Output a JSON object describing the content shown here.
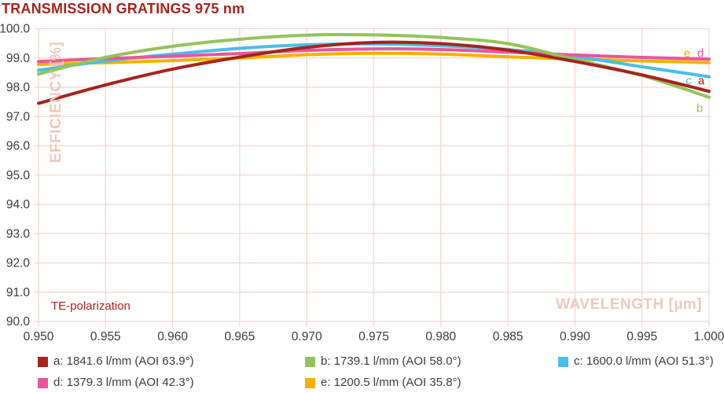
{
  "colors": {
    "title": "#A6231C",
    "axis_title": "#EFC8BC",
    "grid": "#F3D7CD",
    "tick_text": "#3B3B3A",
    "legend_text": "#3B3B3A",
    "annotation": "#A6231C",
    "background": "#FFFFFF"
  },
  "chart_data": {
    "type": "line",
    "title": "TRANSMISSION GRATINGS 975 nm",
    "xlabel": "WAVELENGTH [µm]",
    "ylabel": "EFFICIENCY [%]",
    "annotation": "TE-polarization",
    "grid": true,
    "legend_position": "bottom",
    "xlim": [
      0.95,
      1.0
    ],
    "ylim": [
      90.0,
      100.0
    ],
    "x_ticks": [
      "0.950",
      "0.955",
      "0.960",
      "0.965",
      "0.970",
      "0.975",
      "0.980",
      "0.985",
      "0.990",
      "0.995",
      "1.000"
    ],
    "y_ticks": [
      "100.0",
      "99.0",
      "98.0",
      "97.0",
      "96.0",
      "95.0",
      "94.0",
      "93.0",
      "92.0",
      "91.0",
      "90.0"
    ],
    "x": [
      0.95,
      0.955,
      0.96,
      0.965,
      0.97,
      0.975,
      0.98,
      0.985,
      0.99,
      0.995,
      1.0
    ],
    "series": [
      {
        "id": "a",
        "label": "a: 1841.6 l/mm (AOI 63.9°)",
        "color": "#A6231C",
        "values": [
          97.45,
          98.08,
          98.62,
          99.03,
          99.36,
          99.53,
          99.49,
          99.27,
          98.88,
          98.42,
          97.86
        ]
      },
      {
        "id": "b",
        "label": "b: 1739.1 l/mm (AOI 58.0°)",
        "color": "#93C35B",
        "values": [
          98.45,
          99.02,
          99.4,
          99.64,
          99.78,
          99.79,
          99.7,
          99.49,
          98.95,
          98.4,
          97.66
        ]
      },
      {
        "id": "c",
        "label": "c: 1600.0 l/mm (AOI 51.3°)",
        "color": "#4BBDE9",
        "values": [
          98.58,
          98.9,
          99.13,
          99.33,
          99.45,
          99.48,
          99.42,
          99.29,
          99.05,
          98.7,
          98.36
        ]
      },
      {
        "id": "d",
        "label": "d: 1379.3 l/mm (AOI 42.3°)",
        "color": "#E9559B",
        "values": [
          98.88,
          98.98,
          99.06,
          99.15,
          99.26,
          99.31,
          99.29,
          99.2,
          99.1,
          99.02,
          98.96
        ]
      },
      {
        "id": "e",
        "label": "e: 1200.5 l/mm (AOI 35.8°)",
        "color": "#F6B000",
        "values": [
          98.78,
          98.84,
          98.91,
          99.0,
          99.11,
          99.16,
          99.13,
          99.04,
          98.96,
          98.9,
          98.84
        ]
      }
    ],
    "draw_order": [
      "e",
      "c",
      "d",
      "b",
      "a"
    ],
    "curve_labels": [
      {
        "series": "e",
        "text": "e",
        "x": 0.99836,
        "y": 99.04
      },
      {
        "series": "d",
        "text": "d",
        "x": 0.99936,
        "y": 99.04
      },
      {
        "series": "c",
        "text": "c",
        "x": 0.99848,
        "y": 98.1
      },
      {
        "series": "a",
        "text": "a",
        "x": 0.99942,
        "y": 98.1
      },
      {
        "series": "b",
        "text": "b",
        "x": 0.9993,
        "y": 97.16
      }
    ]
  }
}
